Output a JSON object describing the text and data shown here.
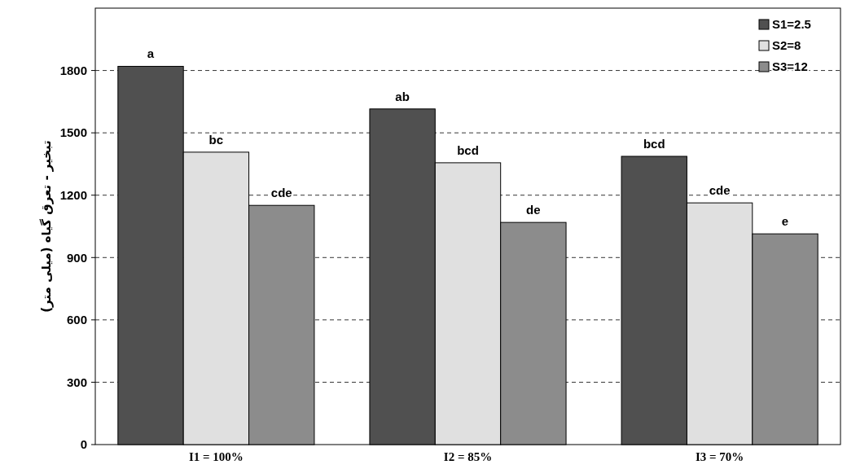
{
  "chart_data": {
    "type": "bar",
    "ylabel": "تبخیر - تعرق گیاه (میلی متر)",
    "categories": [
      "I1 = 100%",
      "I2 = 85%",
      "I3 = 70%"
    ],
    "series": [
      {
        "name": "S1=2.5",
        "color": "#505050",
        "values": [
          1820,
          1615,
          1387
        ],
        "value_labels": [
          "a",
          "ab",
          "bcd"
        ]
      },
      {
        "name": "S2=8",
        "color": "#e0e0e0",
        "values": [
          1407,
          1356,
          1163
        ],
        "value_labels": [
          "bc",
          "bcd",
          "cde"
        ]
      },
      {
        "name": "S3=12",
        "color": "#8c8c8c",
        "values": [
          1151,
          1069,
          1014
        ],
        "value_labels": [
          "cde",
          "de",
          "e"
        ]
      }
    ],
    "ylim": [
      0,
      2100
    ],
    "yticks": [
      0,
      300,
      600,
      900,
      1200,
      1500,
      1800
    ],
    "grid": "y",
    "legend": "top right"
  }
}
